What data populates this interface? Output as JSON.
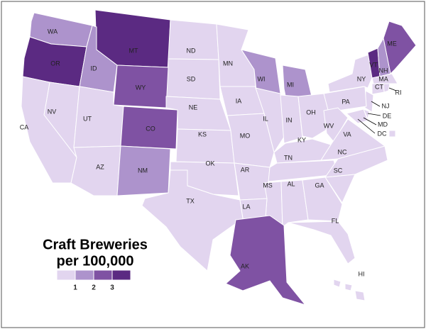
{
  "map": {
    "title_lines": [
      "Craft Breweries",
      "per 100,000"
    ],
    "legend": {
      "colors": [
        "#e2d5ef",
        "#ad93cc",
        "#7f52a3",
        "#5b2a82"
      ],
      "ticks": [
        1,
        2,
        3
      ]
    },
    "states": [
      {
        "label": "WA",
        "level": 2
      },
      {
        "label": "OR",
        "level": 4
      },
      {
        "label": "MT",
        "level": 4
      },
      {
        "label": "ID",
        "level": 2
      },
      {
        "label": "ND",
        "level": 1
      },
      {
        "label": "MN",
        "level": 1
      },
      {
        "label": "SD",
        "level": 1
      },
      {
        "label": "WY",
        "level": 3
      },
      {
        "label": "WI",
        "level": 2
      },
      {
        "label": "MI",
        "level": 2
      },
      {
        "label": "NY",
        "level": 1
      },
      {
        "label": "ME",
        "level": 3
      },
      {
        "label": "VT",
        "level": 4
      },
      {
        "label": "NH",
        "level": 2
      },
      {
        "label": "MA",
        "level": 1
      },
      {
        "label": "RI",
        "level": 1
      },
      {
        "label": "CT",
        "level": 1
      },
      {
        "label": "NJ",
        "level": 1
      },
      {
        "label": "DE",
        "level": 1
      },
      {
        "label": "MD",
        "level": 1
      },
      {
        "label": "DC",
        "level": 1
      },
      {
        "label": "PA",
        "level": 1
      },
      {
        "label": "NV",
        "level": 1
      },
      {
        "label": "CA",
        "level": 1
      },
      {
        "label": "UT",
        "level": 1
      },
      {
        "label": "CO",
        "level": 3
      },
      {
        "label": "NE",
        "level": 1
      },
      {
        "label": "IA",
        "level": 1
      },
      {
        "label": "IL",
        "level": 1
      },
      {
        "label": "IN",
        "level": 1
      },
      {
        "label": "OH",
        "level": 1
      },
      {
        "label": "WV",
        "level": 1
      },
      {
        "label": "VA",
        "level": 1
      },
      {
        "label": "KS",
        "level": 1
      },
      {
        "label": "MO",
        "level": 1
      },
      {
        "label": "KY",
        "level": 1
      },
      {
        "label": "AZ",
        "level": 1
      },
      {
        "label": "NM",
        "level": 2
      },
      {
        "label": "OK",
        "level": 1
      },
      {
        "label": "AR",
        "level": 1
      },
      {
        "label": "TN",
        "level": 1
      },
      {
        "label": "NC",
        "level": 1
      },
      {
        "label": "SC",
        "level": 1
      },
      {
        "label": "MS",
        "level": 1
      },
      {
        "label": "AL",
        "level": 1
      },
      {
        "label": "GA",
        "level": 1
      },
      {
        "label": "TX",
        "level": 1
      },
      {
        "label": "LA",
        "level": 1
      },
      {
        "label": "FL",
        "level": 1
      },
      {
        "label": "AK",
        "level": 3
      },
      {
        "label": "HI",
        "level": 1
      }
    ]
  }
}
